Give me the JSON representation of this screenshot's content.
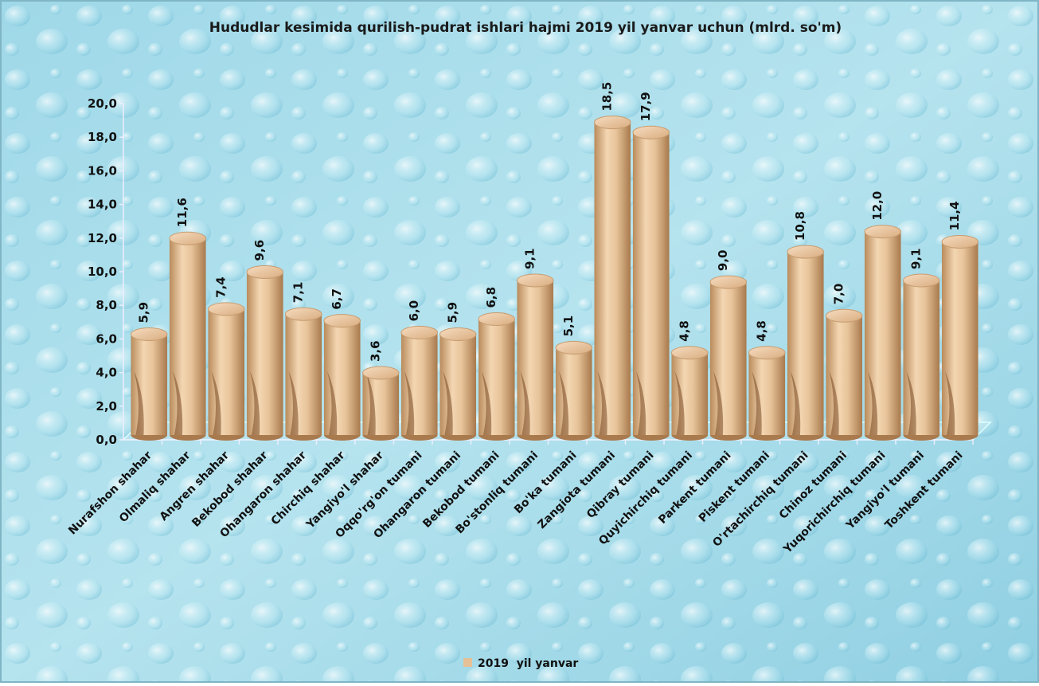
{
  "chart_data": {
    "type": "bar3d",
    "title": "Hududlar kesimida qurilish-pudrat ishlari hajmi 2019 yil yanvar uchun (mlrd. so'm)",
    "categories": [
      "Nurafshon shahar",
      "Olmaliq shahar",
      "Angren shahar",
      "Bekobod shahar",
      "Ohangaron shahar",
      "Chirchiq shahar",
      "Yangiyo'l shahar",
      "Oqqo'rg'on tumani",
      "Ohangaron tumani",
      "Bekobod tumani",
      "Bo'stonliq tumani",
      "Bo'ka tumani",
      "Zangiota tumani",
      "Qibray tumani",
      "Quyichirchiq tumani",
      "Parkent tumani",
      "Piskent tumani",
      "O'rtachirchiq tumani",
      "Chinoz tumani",
      "Yuqorichirchiq tumani",
      "Yangiyo'l tumani",
      "Toshkent tumani"
    ],
    "series": [
      {
        "name": "2019  yil yanvar",
        "color": "#e6c096",
        "values": [
          5.9,
          11.6,
          7.4,
          9.6,
          7.1,
          6.7,
          3.6,
          6.0,
          5.9,
          6.8,
          9.1,
          5.1,
          18.5,
          17.9,
          4.8,
          9.0,
          4.8,
          10.8,
          7.0,
          12.0,
          9.1,
          11.4
        ],
        "value_labels": [
          "5,9",
          "11,6",
          "7,4",
          "9,6",
          "7,1",
          "6,7",
          "3,6",
          "6,0",
          "5,9",
          "6,8",
          "9,1",
          "5,1",
          "18,5",
          "17,9",
          "4,8",
          "9,0",
          "4,8",
          "10,8",
          "7,0",
          "12,0",
          "9,1",
          "11,4"
        ]
      }
    ],
    "ylim": [
      0,
      20
    ],
    "yticks": [
      {
        "value": 0,
        "label": "0,0"
      },
      {
        "value": 2,
        "label": "2,0"
      },
      {
        "value": 4,
        "label": "4,0"
      },
      {
        "value": 6,
        "label": "6,0"
      },
      {
        "value": 8,
        "label": "8,0"
      },
      {
        "value": 10,
        "label": "10,0"
      },
      {
        "value": 12,
        "label": "12,0"
      },
      {
        "value": 14,
        "label": "14,0"
      },
      {
        "value": 16,
        "label": "16,0"
      },
      {
        "value": 18,
        "label": "18,0"
      },
      {
        "value": 20,
        "label": "20,0"
      }
    ],
    "legend": "bottom"
  }
}
